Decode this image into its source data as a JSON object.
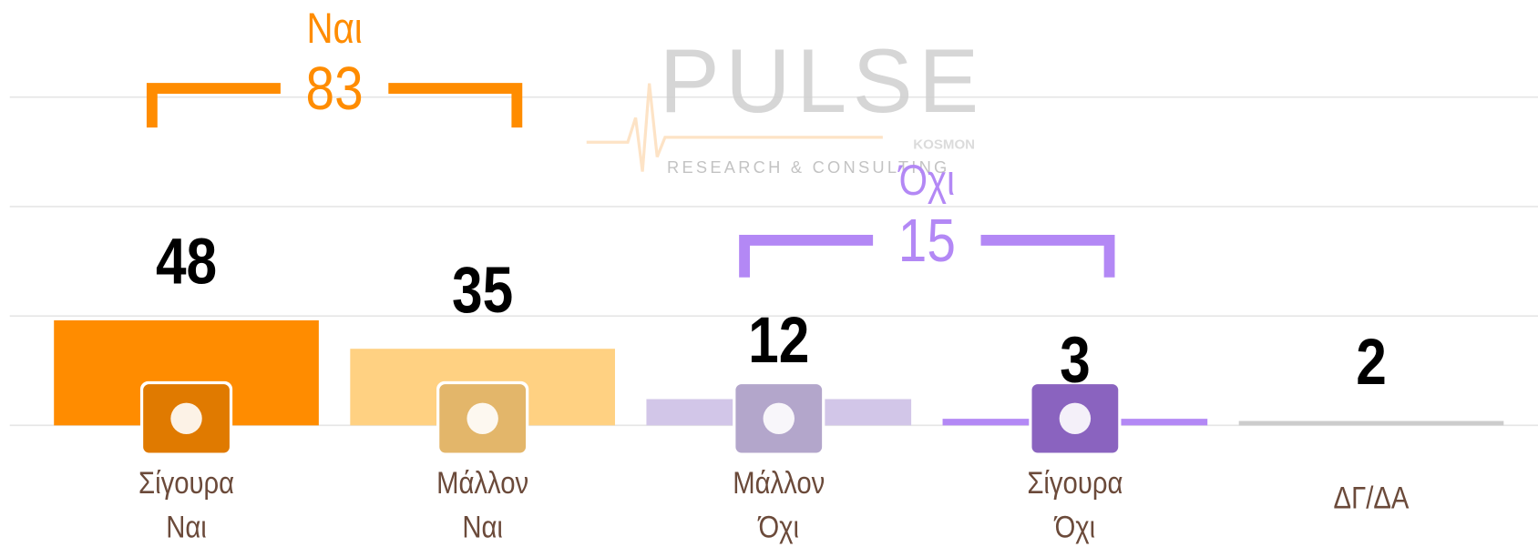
{
  "chart_data": {
    "type": "bar",
    "categories": [
      [
        "Σίγουρα",
        "Ναι"
      ],
      [
        "Μάλλον",
        "Ναι"
      ],
      [
        "Μάλλον",
        "Όχι"
      ],
      [
        "Σίγουρα",
        "Όχι"
      ],
      [
        "ΔΓ/ΔΑ"
      ]
    ],
    "values": [
      48,
      35,
      12,
      3,
      2
    ],
    "colors": [
      "#ff8c00",
      "#ffd182",
      "#d2c6e8",
      "#b388f5",
      "#cccccc"
    ],
    "ylim": [
      0,
      150
    ],
    "yticks": [
      0,
      50,
      100,
      150
    ],
    "grid": true,
    "groups": [
      {
        "label": "Ναι",
        "value": 83,
        "color": "#ff8c00"
      },
      {
        "label": "Όχι",
        "value": 15,
        "color": "#b388f5"
      }
    ],
    "watermark": {
      "title": "PULSE",
      "subtitle": "RESEARCH & CONSULTING",
      "tag": "KOSMON"
    }
  }
}
